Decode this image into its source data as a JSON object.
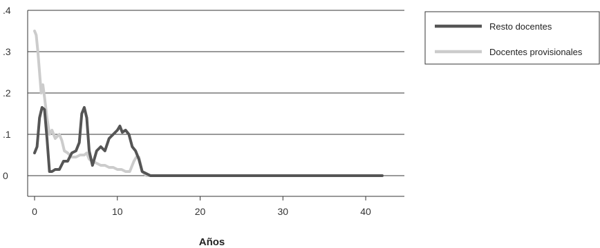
{
  "chart_data": {
    "type": "line",
    "title": "",
    "xlabel": "Años",
    "ylabel": "",
    "xlim": [
      0,
      42
    ],
    "ylim": [
      -0.05,
      0.4
    ],
    "x_ticks": [
      0,
      10,
      20,
      30,
      40
    ],
    "x_tick_labels": [
      "0",
      "10",
      "20",
      "30",
      "40"
    ],
    "y_ticks": [
      0,
      0.1,
      0.2,
      0.3,
      0.4
    ],
    "y_tick_labels": [
      "0",
      ".1",
      ".2",
      ".3",
      ".4"
    ],
    "grid": "horizontal",
    "legend_position": "top-right",
    "series": [
      {
        "name": "Resto docentes",
        "color": "#555555",
        "x": [
          0,
          0.3,
          0.6,
          0.9,
          1.2,
          1.5,
          1.8,
          2.1,
          2.5,
          3,
          3.5,
          4,
          4.5,
          5,
          5.4,
          5.7,
          6,
          6.3,
          6.6,
          7,
          7.5,
          8,
          8.5,
          9,
          9.5,
          10,
          10.3,
          10.6,
          11,
          11.4,
          11.8,
          12.2,
          12.6,
          13,
          13.5,
          14,
          20,
          30,
          39,
          42
        ],
        "y": [
          0.055,
          0.07,
          0.14,
          0.165,
          0.16,
          0.09,
          0.01,
          0.01,
          0.015,
          0.015,
          0.035,
          0.035,
          0.055,
          0.06,
          0.08,
          0.15,
          0.165,
          0.14,
          0.06,
          0.025,
          0.06,
          0.07,
          0.06,
          0.09,
          0.1,
          0.11,
          0.12,
          0.105,
          0.11,
          0.1,
          0.07,
          0.06,
          0.04,
          0.01,
          0.005,
          0,
          0,
          0,
          0,
          0
        ]
      },
      {
        "name": "Docentes provisionales",
        "color": "#cccccc",
        "x": [
          0,
          0.2,
          0.4,
          0.6,
          0.8,
          1,
          1.2,
          1.5,
          1.8,
          2.1,
          2.5,
          3,
          3.3,
          3.6,
          4,
          4.5,
          5,
          5.5,
          6,
          6.3,
          6.6,
          7,
          7.5,
          8,
          8.5,
          9,
          9.5,
          10,
          10.5,
          11,
          11.5,
          12,
          12.3,
          12.6,
          13,
          13.5,
          14,
          20,
          30,
          39
        ],
        "y": [
          0.35,
          0.34,
          0.3,
          0.25,
          0.2,
          0.22,
          0.19,
          0.14,
          0.1,
          0.11,
          0.09,
          0.1,
          0.085,
          0.06,
          0.055,
          0.045,
          0.045,
          0.05,
          0.05,
          0.055,
          0.04,
          0.035,
          0.03,
          0.025,
          0.025,
          0.02,
          0.02,
          0.015,
          0.015,
          0.01,
          0.01,
          0.035,
          0.045,
          0.045,
          0.01,
          0,
          0,
          0,
          0,
          0
        ]
      }
    ]
  }
}
